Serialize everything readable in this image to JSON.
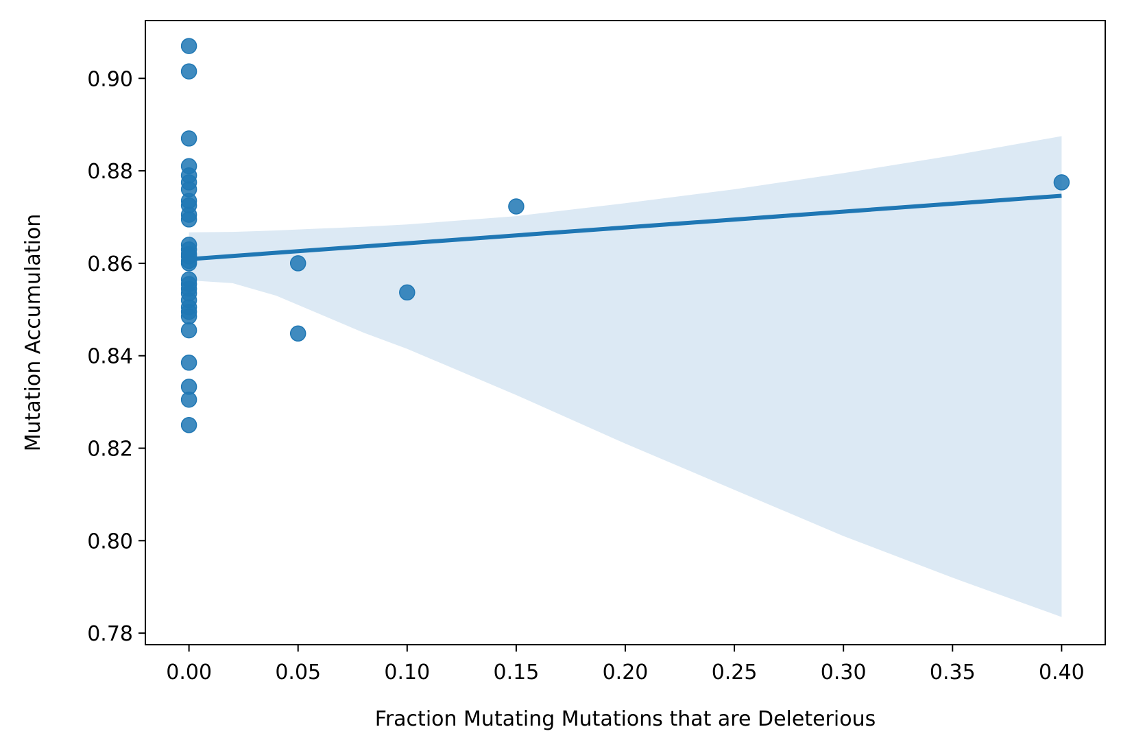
{
  "chart_data": {
    "type": "scatter",
    "title": "",
    "xlabel": "Fraction Mutating Mutations that are Deleterious",
    "ylabel": "Mutation Accumulation",
    "xlim": [
      -0.02,
      0.42
    ],
    "ylim": [
      0.7775,
      0.9125
    ],
    "x_ticks": [
      0.0,
      0.05,
      0.1,
      0.15,
      0.2,
      0.25,
      0.3,
      0.35,
      0.4
    ],
    "x_tick_labels": [
      "0.00",
      "0.05",
      "0.10",
      "0.15",
      "0.20",
      "0.25",
      "0.30",
      "0.35",
      "0.40"
    ],
    "y_ticks": [
      0.78,
      0.8,
      0.82,
      0.84,
      0.86,
      0.88,
      0.9
    ],
    "y_tick_labels": [
      "0.78",
      "0.80",
      "0.82",
      "0.84",
      "0.86",
      "0.88",
      "0.90"
    ],
    "grid": false,
    "colors": {
      "points": "#1f77b4",
      "line": "#1f77b4",
      "band": "#dce9f4"
    },
    "points": [
      {
        "x": 0.0,
        "y": 0.907
      },
      {
        "x": 0.0,
        "y": 0.9015
      },
      {
        "x": 0.0,
        "y": 0.887
      },
      {
        "x": 0.0,
        "y": 0.881
      },
      {
        "x": 0.0,
        "y": 0.879
      },
      {
        "x": 0.0,
        "y": 0.8775
      },
      {
        "x": 0.0,
        "y": 0.876
      },
      {
        "x": 0.0,
        "y": 0.8735
      },
      {
        "x": 0.0,
        "y": 0.8725
      },
      {
        "x": 0.0,
        "y": 0.8705
      },
      {
        "x": 0.0,
        "y": 0.8695
      },
      {
        "x": 0.0,
        "y": 0.864
      },
      {
        "x": 0.0,
        "y": 0.863
      },
      {
        "x": 0.0,
        "y": 0.862
      },
      {
        "x": 0.0,
        "y": 0.8615
      },
      {
        "x": 0.0,
        "y": 0.8605
      },
      {
        "x": 0.0,
        "y": 0.86
      },
      {
        "x": 0.0,
        "y": 0.8565
      },
      {
        "x": 0.0,
        "y": 0.8555
      },
      {
        "x": 0.0,
        "y": 0.8545
      },
      {
        "x": 0.0,
        "y": 0.8535
      },
      {
        "x": 0.0,
        "y": 0.852
      },
      {
        "x": 0.0,
        "y": 0.8505
      },
      {
        "x": 0.0,
        "y": 0.8495
      },
      {
        "x": 0.0,
        "y": 0.8485
      },
      {
        "x": 0.0,
        "y": 0.8455
      },
      {
        "x": 0.0,
        "y": 0.8385
      },
      {
        "x": 0.0,
        "y": 0.8333
      },
      {
        "x": 0.0,
        "y": 0.8305
      },
      {
        "x": 0.0,
        "y": 0.825
      },
      {
        "x": 0.05,
        "y": 0.86
      },
      {
        "x": 0.05,
        "y": 0.8448
      },
      {
        "x": 0.1,
        "y": 0.8537
      },
      {
        "x": 0.15,
        "y": 0.8723
      },
      {
        "x": 0.4,
        "y": 0.8775
      }
    ],
    "regression": {
      "x": [
        0.0,
        0.4
      ],
      "y": [
        0.8609,
        0.8746
      ]
    },
    "confidence_band": {
      "x": [
        0.0,
        0.02,
        0.04,
        0.06,
        0.08,
        0.1,
        0.15,
        0.2,
        0.25,
        0.3,
        0.35,
        0.4
      ],
      "upper": [
        0.8667,
        0.8668,
        0.8671,
        0.8675,
        0.8679,
        0.8684,
        0.8702,
        0.873,
        0.876,
        0.8795,
        0.8833,
        0.8875
      ],
      "lower": [
        0.8563,
        0.8557,
        0.853,
        0.849,
        0.845,
        0.8415,
        0.8315,
        0.821,
        0.811,
        0.801,
        0.792,
        0.7835
      ]
    }
  }
}
